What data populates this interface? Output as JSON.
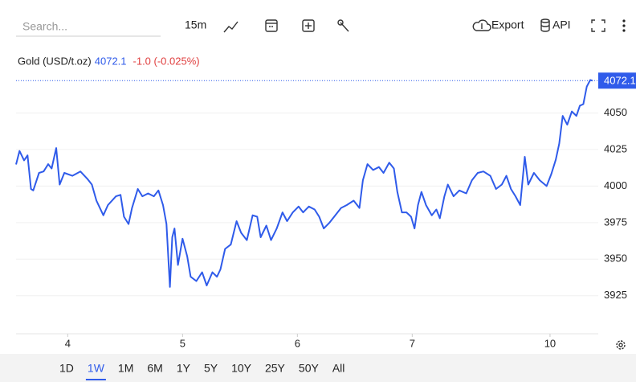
{
  "toolbar": {
    "search_placeholder": "Search...",
    "interval": "15m",
    "export": "Export",
    "api": "API"
  },
  "chart_data": {
    "type": "line",
    "title": "Gold (USD/t.oz)",
    "last": 4072.1,
    "change": "-1.0 (-0.025%)",
    "x": [
      -0.45,
      -0.42,
      -0.38,
      -0.35,
      -0.32,
      -0.3,
      -0.25,
      -0.21,
      -0.17,
      -0.14,
      -0.1,
      -0.07,
      -0.03,
      0.04,
      0.11,
      0.17,
      0.21,
      0.25,
      0.31,
      0.35,
      0.42,
      0.46,
      0.49,
      0.53,
      0.56,
      0.61,
      0.65,
      0.7,
      0.75,
      0.79,
      0.83,
      0.86,
      0.89,
      0.91,
      0.93,
      0.96,
      1.0,
      1.04,
      1.07,
      1.12,
      1.17,
      1.21,
      1.26,
      1.3,
      1.33,
      1.37,
      1.42,
      1.47,
      1.51,
      1.56,
      1.61,
      1.65,
      1.68,
      1.73,
      1.77,
      1.82,
      1.87,
      1.91,
      1.96,
      2.01,
      2.05,
      2.1,
      2.15,
      2.19,
      2.23,
      2.28,
      2.33,
      2.38,
      2.43,
      2.49,
      2.54,
      2.57,
      2.61,
      2.66,
      2.71,
      2.75,
      2.8,
      2.84,
      2.87,
      2.91,
      2.95,
      2.99,
      3.02,
      3.05,
      3.08,
      3.12,
      3.17,
      3.21,
      3.24,
      3.28,
      3.31,
      3.36,
      3.41,
      3.47,
      3.52,
      3.57,
      3.62,
      3.68,
      3.73,
      3.78,
      3.82,
      3.86,
      3.9,
      3.94,
      3.98,
      4.01,
      4.06,
      4.11,
      4.17,
      4.21,
      4.25,
      4.28,
      4.31,
      4.35,
      4.39,
      4.43,
      4.46,
      4.49,
      4.52,
      4.55,
      4.57
    ],
    "values": [
      4014.8,
      4024,
      4017.6,
      4021,
      3998,
      3997,
      4009,
      4010,
      4015,
      4012,
      4026,
      4001,
      4009,
      4007,
      4010,
      4005,
      4001,
      3990,
      3980,
      3987,
      3993,
      3994,
      3979,
      3974,
      3985,
      3998,
      3993,
      3995,
      3993,
      3997,
      3987,
      3974,
      3931,
      3965,
      3971,
      3946,
      3964,
      3952,
      3938,
      3935,
      3941,
      3932,
      3941,
      3938,
      3943,
      3957,
      3960,
      3976,
      3968,
      3963,
      3980,
      3979,
      3965,
      3973,
      3963,
      3971,
      3982,
      3976,
      3982,
      3986,
      3982,
      3986,
      3984,
      3979,
      3971,
      3975,
      3980,
      3985,
      3987,
      3990,
      3985,
      4004,
      4015,
      4011,
      4013,
      4009,
      4016,
      4012,
      3996,
      3982,
      3982,
      3979,
      3971,
      3987,
      3996,
      3987,
      3980,
      3984,
      3978,
      3993,
      4001,
      3993,
      3997,
      3995,
      4004,
      4009,
      4010,
      4007,
      3998,
      4001,
      4007,
      3998,
      3993,
      3987,
      4020,
      4001,
      4009,
      4004,
      4000,
      4008,
      4018,
      4029,
      4048,
      4042,
      4051,
      4048,
      4055,
      4056,
      4068,
      4072.5,
      4072.1
    ],
    "color": "#2f5bea",
    "ylim": [
      3899,
      4075
    ],
    "yticks": [
      3925,
      3950,
      3975,
      4000,
      4025,
      4050
    ],
    "xlim": [
      -0.45,
      4.62
    ],
    "xticks": [
      {
        "value": 0,
        "label": "4"
      },
      {
        "value": 1,
        "label": "5"
      },
      {
        "value": 2,
        "label": "6"
      },
      {
        "value": 3,
        "label": "7"
      },
      {
        "value": 4.2,
        "label": "10"
      }
    ],
    "grid": true
  },
  "ranges": {
    "options": [
      "1D",
      "1W",
      "1M",
      "6M",
      "1Y",
      "5Y",
      "10Y",
      "25Y",
      "50Y",
      "All"
    ],
    "selected": 1
  }
}
